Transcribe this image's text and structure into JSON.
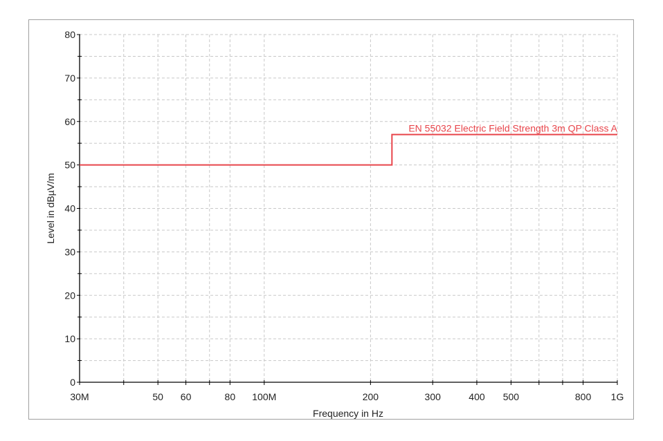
{
  "chart_data": {
    "type": "line",
    "xlabel": "Frequency in Hz",
    "ylabel": "Level in dBµV/m",
    "x_scale": "log",
    "xlim": [
      30000000,
      1000000000
    ],
    "ylim": [
      0,
      80
    ],
    "grid": true,
    "x_ticks": [
      30000000,
      40000000,
      50000000,
      60000000,
      70000000,
      80000000,
      100000000,
      200000000,
      300000000,
      400000000,
      500000000,
      600000000,
      700000000,
      800000000,
      1000000000
    ],
    "x_tick_labels": [
      {
        "value": 30000000,
        "label": "30M"
      },
      {
        "value": 50000000,
        "label": "50"
      },
      {
        "value": 60000000,
        "label": "60"
      },
      {
        "value": 80000000,
        "label": "80"
      },
      {
        "value": 100000000,
        "label": "100M"
      },
      {
        "value": 200000000,
        "label": "200"
      },
      {
        "value": 300000000,
        "label": "300"
      },
      {
        "value": 400000000,
        "label": "400"
      },
      {
        "value": 500000000,
        "label": "500"
      },
      {
        "value": 800000000,
        "label": "800"
      },
      {
        "value": 1000000000,
        "label": "1G"
      }
    ],
    "y_ticks": [
      0,
      10,
      20,
      30,
      40,
      50,
      60,
      70,
      80
    ],
    "y_minor_ticks": [
      5,
      15,
      25,
      35,
      45,
      55,
      65,
      75
    ],
    "series": [
      {
        "name": "EN 55032 Electric Field Strength 3m QP Class A",
        "color": "#e8454b",
        "x": [
          30000000,
          230000000,
          230000000,
          1000000000
        ],
        "y": [
          50,
          50,
          57,
          57
        ]
      }
    ]
  }
}
